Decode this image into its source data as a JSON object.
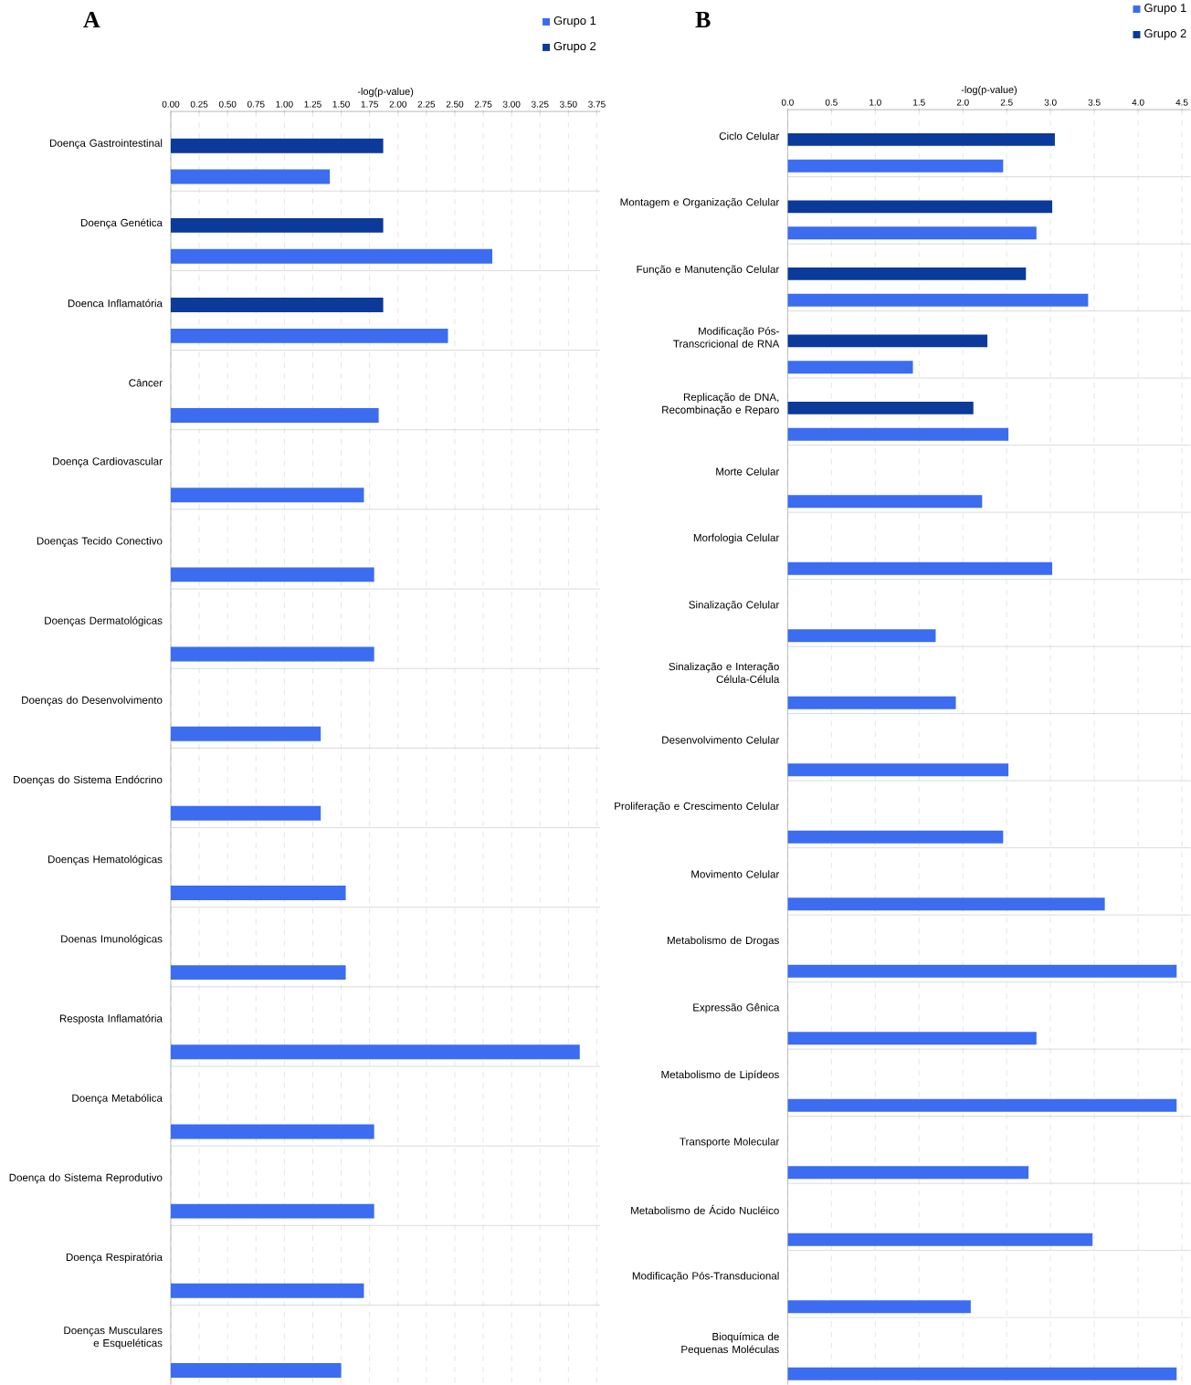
{
  "chart_data": [
    {
      "type": "bar",
      "orientation": "horizontal",
      "title": "A",
      "xlabel": "-log(p-value)",
      "categories": [
        "Doença Gastrointestinal",
        "Doença Genética",
        "Doenca Inflamatória",
        "Câncer",
        "Doença Cardiovascular",
        "Doenças Tecido Conectivo",
        "Doenças Dermatológicas",
        "Doenças do Desenvolvimento",
        "Doenças do Sistema Endócrino",
        "Doenças Hematológicas",
        "Doenas Imunológicas",
        "Resposta Inflamatória",
        "Doença Metabólica",
        "Doença do Sistema Reprodutivo",
        "Doença Respiratória",
        "Doenças Musculares e Esqueléticas"
      ],
      "series": [
        {
          "name": "Grupo 1",
          "color": "#3c6cf0",
          "values": [
            1.4,
            2.83,
            2.44,
            1.83,
            1.7,
            1.79,
            1.79,
            1.32,
            1.32,
            1.54,
            1.54,
            3.6,
            1.79,
            1.79,
            1.7,
            1.5
          ]
        },
        {
          "name": "Grupo 2",
          "color": "#0b3a9a",
          "values": [
            1.87,
            1.87,
            1.87,
            null,
            null,
            null,
            null,
            null,
            null,
            null,
            null,
            null,
            null,
            null,
            null,
            null
          ]
        }
      ],
      "xlim": [
        0,
        3.78
      ],
      "xticks": [
        {
          "value": 0,
          "label": "0.00"
        },
        {
          "value": 0.25,
          "label": "0.25"
        },
        {
          "value": 0.5,
          "label": "0.50"
        },
        {
          "value": 0.75,
          "label": "0.75"
        },
        {
          "value": 1,
          "label": "1.00"
        },
        {
          "value": 1.25,
          "label": "1.25"
        },
        {
          "value": 1.5,
          "label": "1.50"
        },
        {
          "value": 1.75,
          "label": "1.75"
        },
        {
          "value": 2,
          "label": "2.00"
        },
        {
          "value": 2.25,
          "label": "2.25"
        },
        {
          "value": 2.5,
          "label": "2.50"
        },
        {
          "value": 2.75,
          "label": "2.75"
        },
        {
          "value": 3,
          "label": "3.00"
        },
        {
          "value": 3.25,
          "label": "3.25"
        },
        {
          "value": 3.5,
          "label": "3.50"
        },
        {
          "value": 3.75,
          "label": "3.75"
        }
      ],
      "grid": true,
      "legend": "top right"
    },
    {
      "type": "bar",
      "orientation": "horizontal",
      "title": "B",
      "xlabel": "-log(p-value)",
      "categories": [
        "Ciclo Celular",
        "Montagem e Organização Celular",
        "Função e Manutenção Celular",
        "Modificação Pós-Transcricional de RNA",
        "Replicação de DNA, Recombinação e Reparo",
        "Morte Celular",
        "Morfologia Celular",
        "Sinalização Celular",
        "Sinalização e Interação Célula-Célula",
        "Desenvolvimento Celular",
        "Proliferação e Crescimento Celular",
        "Movimento Celular",
        "Metabolismo de Drogas",
        "Expressão Gênica",
        "Metabolismo de Lipídeos",
        "Transporte Molecular",
        "Metabolismo de Ácido Nucléico",
        "Modificação Pós-Transducional",
        "Bioquímica de Pequenas Moléculas"
      ],
      "series": [
        {
          "name": "Grupo 1",
          "color": "#3c6cf0",
          "values": [
            2.46,
            2.84,
            3.43,
            1.43,
            2.52,
            2.22,
            3.02,
            1.69,
            1.92,
            2.52,
            2.46,
            3.62,
            4.44,
            2.84,
            4.44,
            2.75,
            3.48,
            2.09,
            4.44
          ]
        },
        {
          "name": "Grupo 2",
          "color": "#0b3a9a",
          "values": [
            3.05,
            3.02,
            2.72,
            2.28,
            2.12,
            null,
            null,
            null,
            null,
            null,
            null,
            null,
            null,
            null,
            null,
            null,
            null,
            null,
            null
          ]
        }
      ],
      "xlim": [
        0,
        4.6
      ],
      "xticks": [
        {
          "value": 0,
          "label": "0.0"
        },
        {
          "value": 0.5,
          "label": "0.5"
        },
        {
          "value": 1,
          "label": "1.0"
        },
        {
          "value": 1.5,
          "label": "1.5"
        },
        {
          "value": 2,
          "label": "2.0"
        },
        {
          "value": 2.5,
          "label": "2.5"
        },
        {
          "value": 3,
          "label": "3.0"
        },
        {
          "value": 3.5,
          "label": "3.5"
        },
        {
          "value": 4,
          "label": "4.0"
        },
        {
          "value": 4.5,
          "label": "4.5"
        }
      ],
      "grid": true,
      "legend": "top right"
    }
  ]
}
